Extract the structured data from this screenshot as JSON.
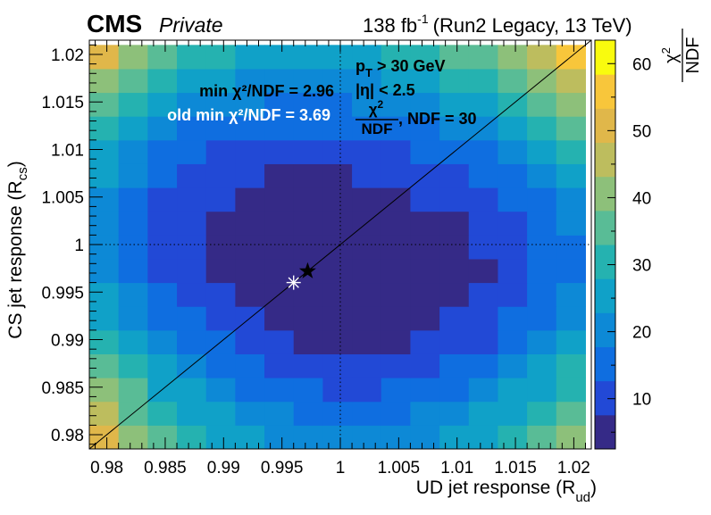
{
  "header": {
    "experiment": "CMS",
    "label": "Private",
    "lumi": "138 fb",
    "lumi_exp": "-1",
    "run_info": "(Run2 Legacy, 13 TeV)"
  },
  "colorbar": {
    "title_num": "χ",
    "title_num_sup": "2",
    "title_den": "NDF",
    "ticks": [
      "10",
      "20",
      "30",
      "40",
      "50",
      "60"
    ]
  },
  "annotations": {
    "min_fit": "min χ²/NDF = 2.96",
    "old_min_fit": "old min χ²/NDF = 3.69",
    "pt_cut_p": "p",
    "pt_cut_sub": "T",
    "pt_cut_rest": " > 30 GeV",
    "eta_cut": "|η| < 2.5",
    "chi_num": "χ",
    "chi_sup": "2",
    "chi_den": "NDF",
    "ndf_text": ", NDF = 30"
  },
  "chart_data": {
    "type": "heatmap",
    "xlabel_main": "UD jet response (R",
    "xlabel_sub": "ud",
    "xlabel_end": ")",
    "ylabel_main": "CS jet response (R",
    "ylabel_sub": "cs",
    "ylabel_end": ")",
    "xlim": [
      0.9785,
      1.0215
    ],
    "ylim": [
      0.9785,
      1.0215
    ],
    "x_tick_values": [
      0.98,
      0.985,
      0.99,
      0.995,
      1,
      1.005,
      1.01,
      1.015,
      1.02
    ],
    "x_tick_labels": [
      "0.98",
      "0.985",
      "0.99",
      "0.995",
      "1",
      "1.005",
      "1.01",
      "1.015",
      "1.02"
    ],
    "y_tick_values": [
      0.98,
      0.985,
      0.99,
      0.995,
      1,
      1.005,
      1.01,
      1.015,
      1.02
    ],
    "y_tick_labels": [
      "0.98",
      "0.985",
      "0.99",
      "0.995",
      "1",
      "1.005",
      "1.01",
      "1.015",
      "1.02"
    ],
    "z_range": [
      2.5,
      63.5
    ],
    "grid": {
      "x_start": 0.9785,
      "y_start": 0.9785,
      "step": 0.0025,
      "note_rows": "row 0 = lowest y bin",
      "z": [
        [
          52,
          42,
          36,
          31,
          27,
          25,
          22,
          21,
          20,
          20,
          21,
          22,
          25,
          27,
          31,
          36,
          42
        ],
        [
          46,
          38,
          31,
          27,
          24,
          21,
          18,
          17,
          16,
          16,
          17,
          18,
          20,
          23,
          26,
          31,
          37
        ],
        [
          40,
          33,
          27,
          23,
          20,
          17,
          14,
          13,
          12,
          12,
          13,
          14,
          16,
          19,
          23,
          27,
          32
        ],
        [
          35,
          28,
          23,
          19,
          16,
          13,
          11,
          9,
          9,
          9,
          9,
          11,
          13,
          15,
          19,
          23,
          28
        ],
        [
          31,
          24,
          19,
          16,
          13,
          10,
          8,
          7,
          6,
          6,
          7,
          8,
          10,
          12,
          16,
          20,
          24
        ],
        [
          27,
          21,
          16,
          13,
          10,
          8,
          6,
          4,
          4,
          4,
          5,
          6,
          8,
          10,
          13,
          17,
          21
        ],
        [
          24,
          18,
          14,
          11,
          8,
          6,
          4,
          3,
          3,
          3,
          3,
          4,
          6,
          8,
          11,
          14,
          19
        ],
        [
          22,
          16,
          12,
          9,
          7,
          5,
          3,
          3,
          3,
          3,
          3,
          4,
          5,
          7,
          10,
          13,
          17
        ],
        [
          21,
          15,
          11,
          9,
          6,
          4,
          3,
          3,
          3,
          3,
          4,
          5,
          6,
          8,
          10,
          13,
          17
        ],
        [
          21,
          15,
          11,
          9,
          7,
          5,
          4,
          4,
          4,
          4,
          5,
          6,
          7,
          9,
          12,
          15,
          19
        ],
        [
          22,
          16,
          12,
          10,
          8,
          6,
          5,
          5,
          5,
          6,
          7,
          8,
          9,
          11,
          14,
          17,
          21
        ],
        [
          24,
          18,
          14,
          12,
          9,
          8,
          7,
          7,
          7,
          8,
          9,
          10,
          12,
          14,
          17,
          21,
          25
        ],
        [
          27,
          21,
          17,
          14,
          12,
          11,
          10,
          10,
          10,
          11,
          12,
          13,
          15,
          17,
          21,
          25,
          30
        ],
        [
          31,
          25,
          20,
          17,
          15,
          14,
          13,
          13,
          13,
          14,
          15,
          17,
          19,
          21,
          25,
          30,
          35
        ],
        [
          36,
          29,
          24,
          21,
          19,
          18,
          17,
          17,
          17,
          18,
          19,
          21,
          23,
          26,
          30,
          35,
          41
        ],
        [
          42,
          34,
          29,
          26,
          24,
          22,
          22,
          22,
          22,
          22,
          24,
          26,
          28,
          31,
          35,
          41,
          48
        ],
        [
          49,
          40,
          34,
          31,
          29,
          27,
          27,
          27,
          27,
          27,
          28,
          30,
          33,
          37,
          41,
          47,
          55
        ]
      ]
    },
    "best_fit": {
      "x": 0.9972,
      "y": 0.9972
    },
    "old_best_fit": {
      "x": 0.996,
      "y": 0.996
    },
    "reference_lines": {
      "x": 1,
      "y": 1,
      "diagonal": true
    }
  },
  "colors": {
    "palette": [
      "#352a87",
      "#2249d6",
      "#0f6ee0",
      "#0d89d6",
      "#10a1c8",
      "#25b2b0",
      "#59bc96",
      "#8dc07a",
      "#bdbd5e",
      "#e0b74a",
      "#f8c63b",
      "#f9fb0e"
    ],
    "best_fit_marker": "#000000",
    "old_best_fit_marker": "#ffffff"
  }
}
